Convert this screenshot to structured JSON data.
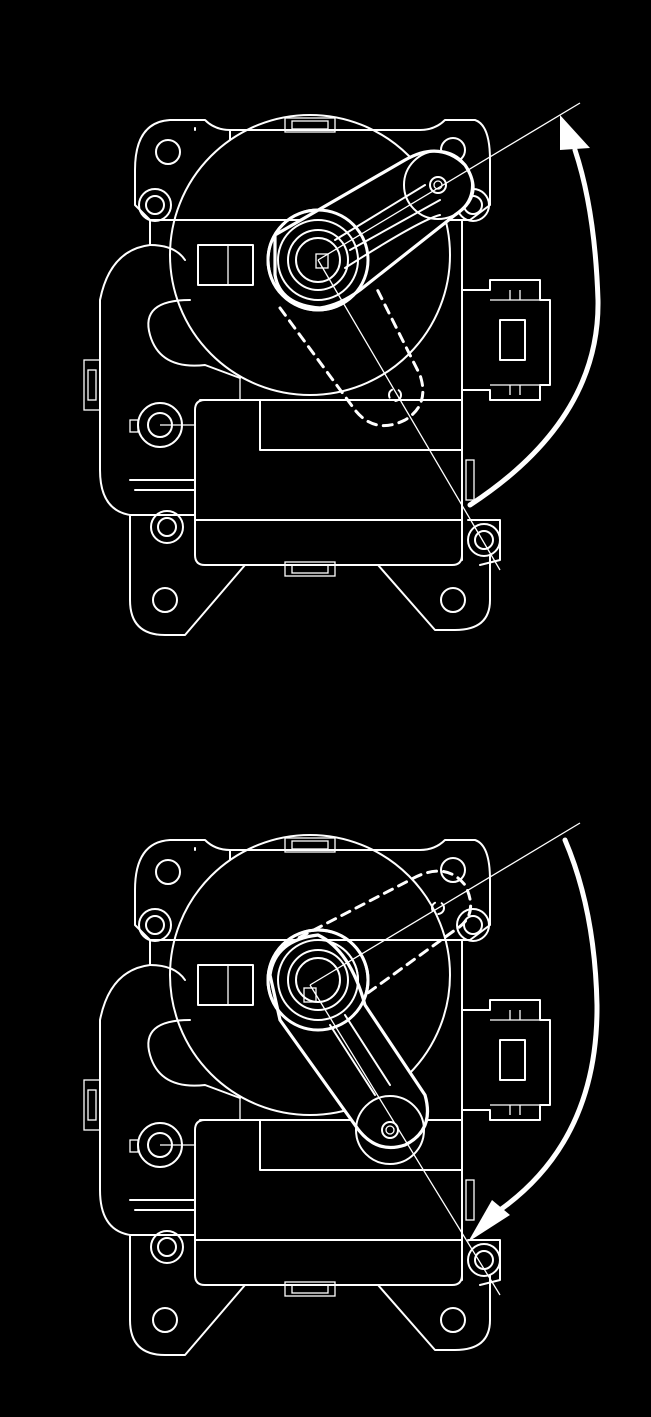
{
  "figure": {
    "background": "#000000",
    "line_color": "#ffffff",
    "panels": [
      {
        "id": "top",
        "rotation_direction": "counterclockwise",
        "arm_position": "upper"
      },
      {
        "id": "bottom",
        "rotation_direction": "clockwise",
        "arm_position": "lower"
      }
    ]
  }
}
